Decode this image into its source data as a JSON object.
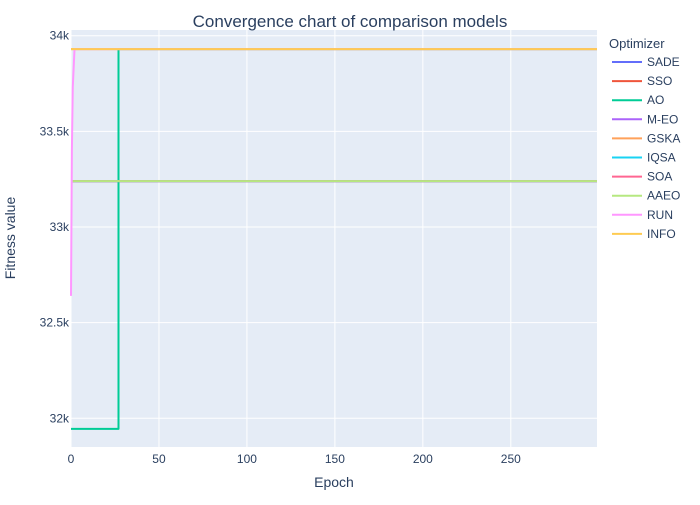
{
  "chart_data": {
    "type": "line",
    "title": "Convergence chart of comparison models",
    "xlabel": "Epoch",
    "ylabel": "Fitness value",
    "xlim": [
      0,
      299
    ],
    "ylim": [
      31850,
      34030
    ],
    "x_ticks": [
      0,
      50,
      100,
      150,
      200,
      250
    ],
    "x_tick_labels": [
      "0",
      "50",
      "100",
      "150",
      "200",
      "250"
    ],
    "y_ticks": [
      32000,
      32500,
      33000,
      33500,
      34000
    ],
    "y_tick_labels": [
      "32k",
      "32.5k",
      "33k",
      "33.5k",
      "34k"
    ],
    "grid": true,
    "legend_title": "Optimizer",
    "legend_position": "right",
    "series": [
      {
        "name": "SADE",
        "color": "#636efa",
        "x": [
          0,
          299
        ],
        "y": [
          33240,
          33240
        ]
      },
      {
        "name": "SSO",
        "color": "#ef553b",
        "x": [
          0,
          299
        ],
        "y": [
          33240,
          33240
        ]
      },
      {
        "name": "AO",
        "color": "#00cc96",
        "x": [
          0,
          26,
          27,
          299
        ],
        "y": [
          31945,
          31945,
          33930,
          33930
        ]
      },
      {
        "name": "M-EO",
        "color": "#ab63fa",
        "x": [
          0,
          299
        ],
        "y": [
          33240,
          33240
        ]
      },
      {
        "name": "GSKA",
        "color": "#ffa15a",
        "x": [
          0,
          299
        ],
        "y": [
          33930,
          33930
        ]
      },
      {
        "name": "IQSA",
        "color": "#19d3f3",
        "x": [
          0,
          299
        ],
        "y": [
          33240,
          33240
        ]
      },
      {
        "name": "SOA",
        "color": "#ff6692",
        "x": [
          0,
          299
        ],
        "y": [
          33240,
          33240
        ]
      },
      {
        "name": "AAEO",
        "color": "#b6e880",
        "x": [
          0,
          299
        ],
        "y": [
          33240,
          33240
        ]
      },
      {
        "name": "RUN",
        "color": "#ff97ff",
        "x": [
          0,
          0.5,
          1,
          2,
          299
        ],
        "y": [
          32640,
          33400,
          33730,
          33930,
          33930
        ]
      },
      {
        "name": "INFO",
        "color": "#fecb52",
        "x": [
          0,
          299
        ],
        "y": [
          33930,
          33930
        ]
      }
    ]
  }
}
